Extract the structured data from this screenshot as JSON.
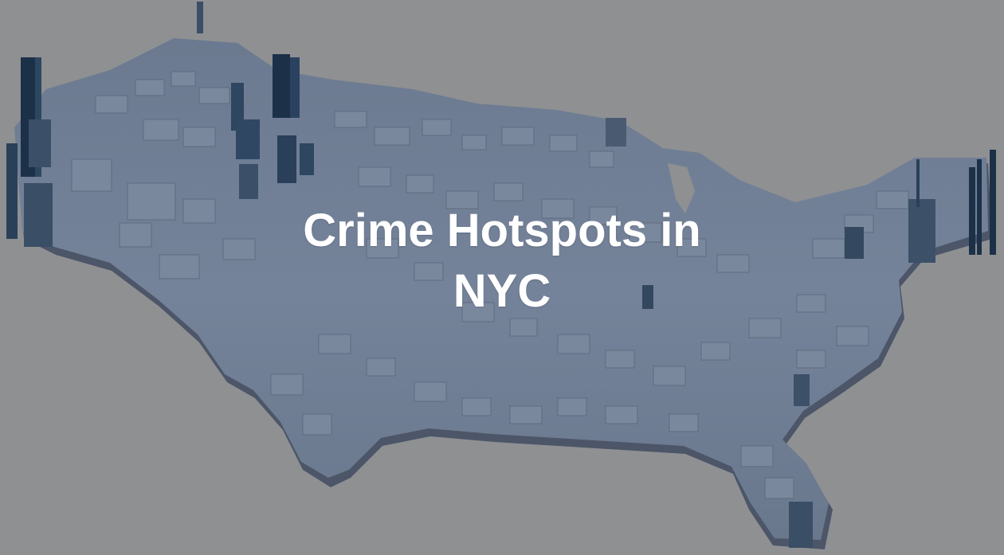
{
  "title": {
    "line1": "Crime Hotspots in",
    "line2": "NYC"
  },
  "colors": {
    "background": "#8f9092",
    "land_top": "#717f94",
    "land_side": "#4a5466",
    "block_dark": "#1c3148",
    "title_text": "#ffffff"
  },
  "map": {
    "style": "3d-extruded-county-blocks",
    "region": "contiguous United States"
  }
}
